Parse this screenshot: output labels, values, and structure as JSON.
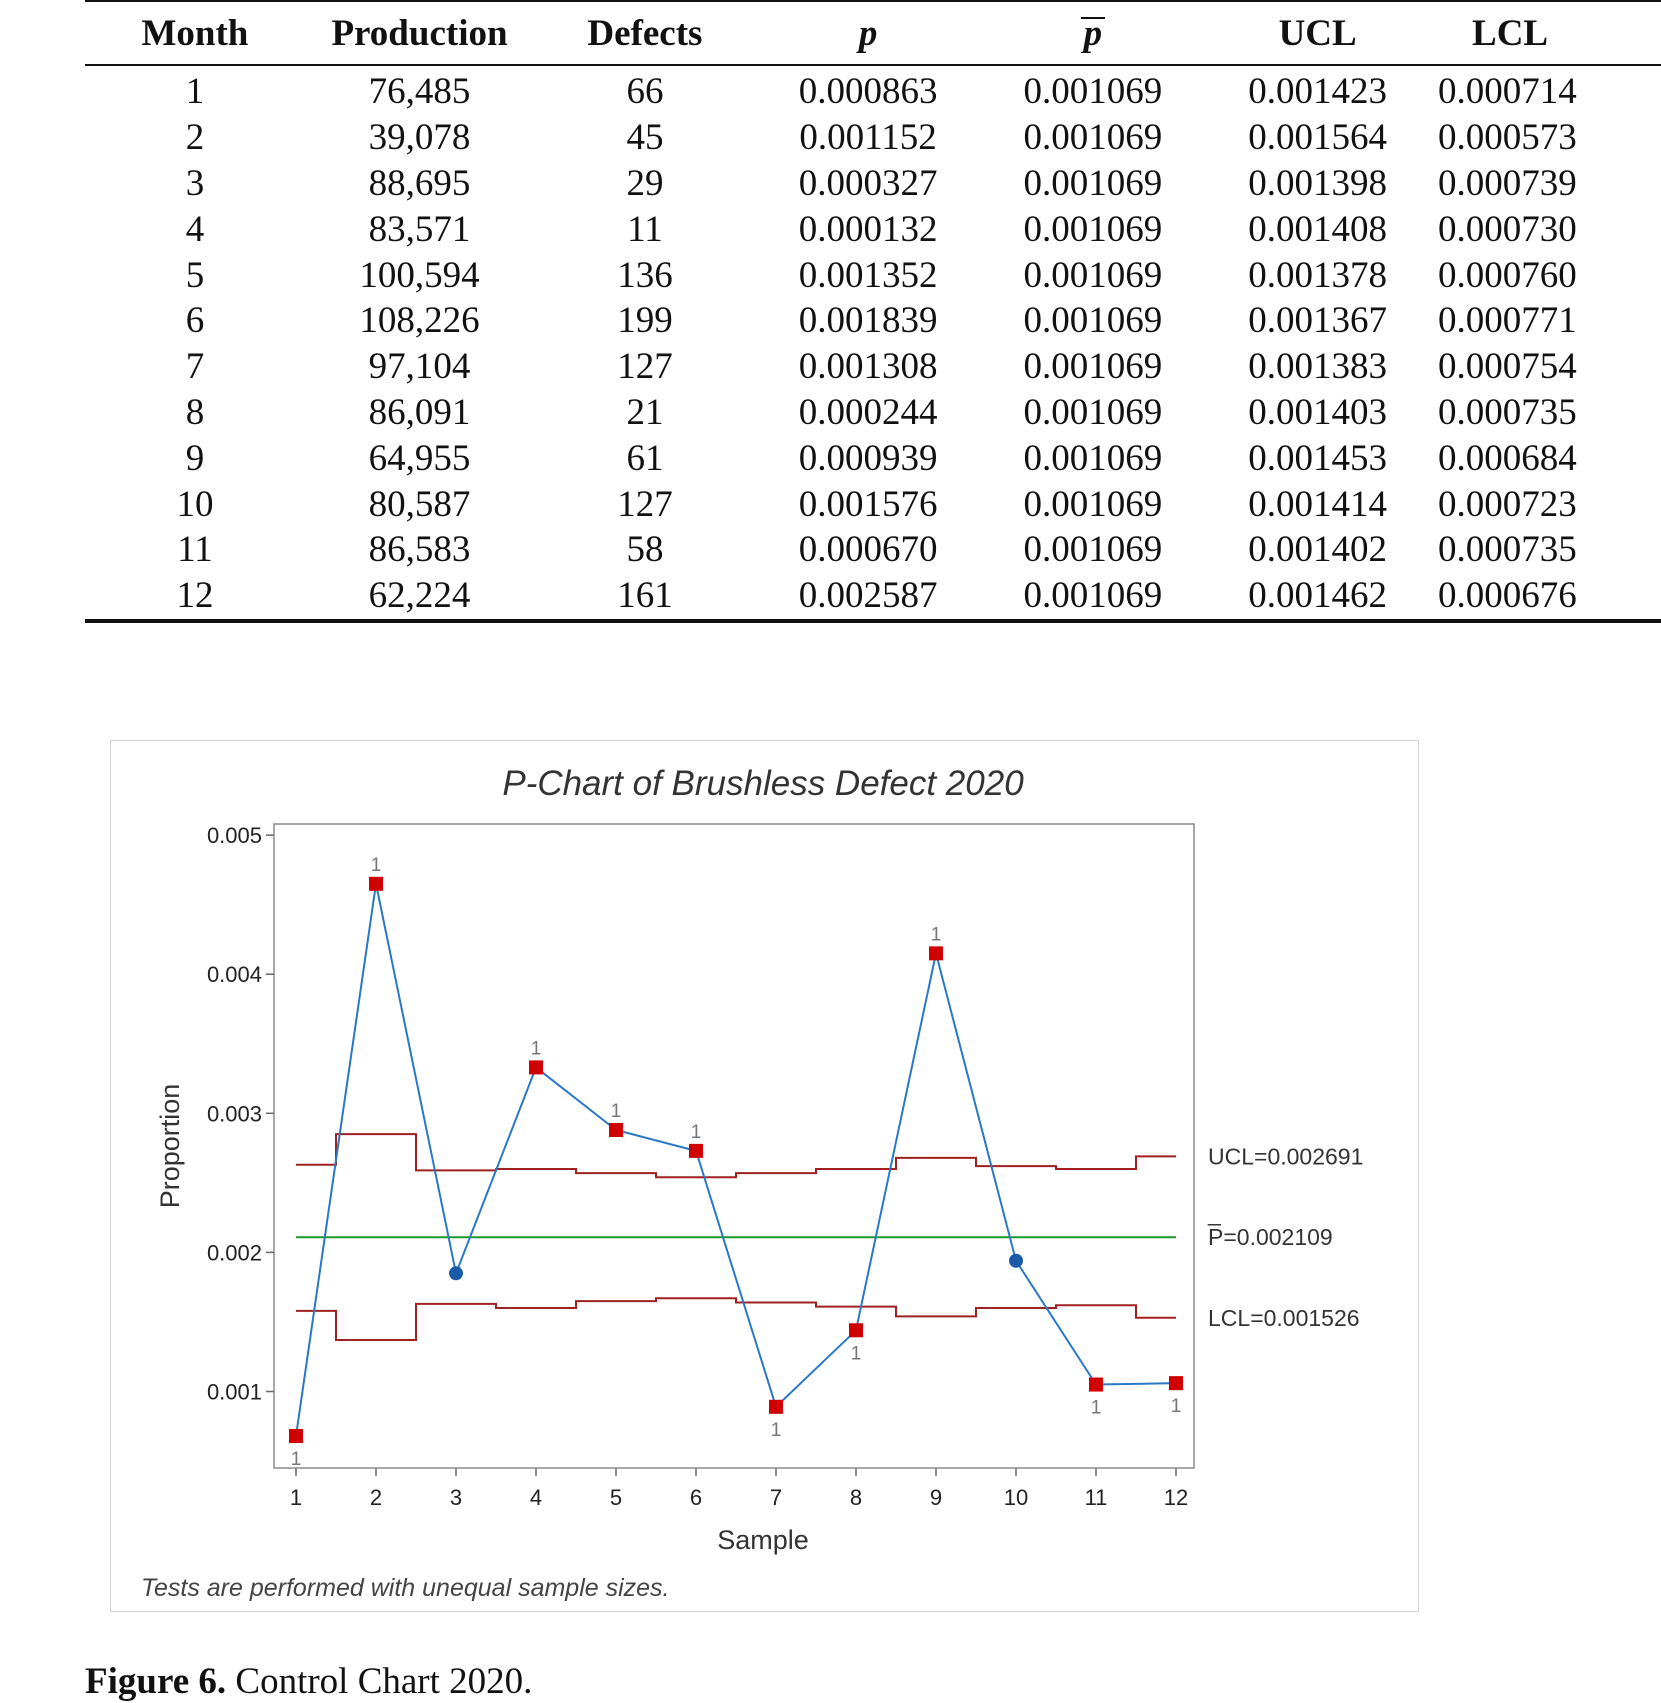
{
  "table": {
    "headers": {
      "month": "Month",
      "production": "Production",
      "defects": "Defects",
      "p": "p",
      "pbar": "p",
      "ucl": "UCL",
      "lcl": "LCL"
    },
    "rows": [
      {
        "month": "1",
        "production": "76,485",
        "defects": "66",
        "p": "0.000863",
        "pbar": "0.001069",
        "ucl": "0.001423",
        "lcl": "0.000714"
      },
      {
        "month": "2",
        "production": "39,078",
        "defects": "45",
        "p": "0.001152",
        "pbar": "0.001069",
        "ucl": "0.001564",
        "lcl": "0.000573"
      },
      {
        "month": "3",
        "production": "88,695",
        "defects": "29",
        "p": "0.000327",
        "pbar": "0.001069",
        "ucl": "0.001398",
        "lcl": "0.000739"
      },
      {
        "month": "4",
        "production": "83,571",
        "defects": "11",
        "p": "0.000132",
        "pbar": "0.001069",
        "ucl": "0.001408",
        "lcl": "0.000730"
      },
      {
        "month": "5",
        "production": "100,594",
        "defects": "136",
        "p": "0.001352",
        "pbar": "0.001069",
        "ucl": "0.001378",
        "lcl": "0.000760"
      },
      {
        "month": "6",
        "production": "108,226",
        "defects": "199",
        "p": "0.001839",
        "pbar": "0.001069",
        "ucl": "0.001367",
        "lcl": "0.000771"
      },
      {
        "month": "7",
        "production": "97,104",
        "defects": "127",
        "p": "0.001308",
        "pbar": "0.001069",
        "ucl": "0.001383",
        "lcl": "0.000754"
      },
      {
        "month": "8",
        "production": "86,091",
        "defects": "21",
        "p": "0.000244",
        "pbar": "0.001069",
        "ucl": "0.001403",
        "lcl": "0.000735"
      },
      {
        "month": "9",
        "production": "64,955",
        "defects": "61",
        "p": "0.000939",
        "pbar": "0.001069",
        "ucl": "0.001453",
        "lcl": "0.000684"
      },
      {
        "month": "10",
        "production": "80,587",
        "defects": "127",
        "p": "0.001576",
        "pbar": "0.001069",
        "ucl": "0.001414",
        "lcl": "0.000723"
      },
      {
        "month": "11",
        "production": "86,583",
        "defects": "58",
        "p": "0.000670",
        "pbar": "0.001069",
        "ucl": "0.001402",
        "lcl": "0.000735"
      },
      {
        "month": "12",
        "production": "62,224",
        "defects": "161",
        "p": "0.002587",
        "pbar": "0.001069",
        "ucl": "0.001462",
        "lcl": "0.000676"
      }
    ]
  },
  "chart_data": {
    "type": "line",
    "title": "P-Chart of Brushless Defect 2020",
    "xlabel": "Sample",
    "ylabel": "Proportion",
    "x": [
      1,
      2,
      3,
      4,
      5,
      6,
      7,
      8,
      9,
      10,
      11,
      12
    ],
    "ylim": [
      0.00045,
      0.00508
    ],
    "yticks": [
      0.001,
      0.002,
      0.003,
      0.004,
      0.005
    ],
    "ytick_labels": [
      "0.001",
      "0.002",
      "0.003",
      "0.004",
      "0.005"
    ],
    "xtick_labels": [
      "1",
      "2",
      "3",
      "4",
      "5",
      "6",
      "7",
      "8",
      "9",
      "10",
      "11",
      "12"
    ],
    "series": [
      {
        "name": "Proportion",
        "color": "#2a78c8",
        "values": [
          0.00068,
          0.00465,
          0.00185,
          0.00333,
          0.00288,
          0.00273,
          0.00089,
          0.00144,
          0.00415,
          0.00194,
          0.00105,
          0.00106
        ],
        "out_of_control": [
          true,
          true,
          false,
          true,
          true,
          true,
          true,
          true,
          true,
          false,
          true,
          true
        ],
        "flag_labels": [
          "1",
          "1",
          "",
          "1",
          "1",
          "1",
          "1",
          "1",
          "1",
          "",
          "1",
          "1"
        ],
        "flag_position": [
          "below",
          "above",
          "",
          "above",
          "above",
          "above",
          "below",
          "below",
          "above",
          "",
          "below",
          "below"
        ]
      }
    ],
    "ucl": {
      "color": "#a02020",
      "values": [
        0.00263,
        0.00285,
        0.00259,
        0.0026,
        0.00257,
        0.00254,
        0.00257,
        0.0026,
        0.00268,
        0.00262,
        0.0026,
        0.00269
      ],
      "label": "UCL=0.002691"
    },
    "center": {
      "color": "#1a9a2a",
      "value": 0.002109,
      "label_bar": "_",
      "label": "P=0.002109"
    },
    "lcl": {
      "color": "#a02020",
      "values": [
        0.00158,
        0.00137,
        0.00163,
        0.0016,
        0.00165,
        0.00167,
        0.00164,
        0.00161,
        0.00154,
        0.0016,
        0.00162,
        0.00153
      ],
      "label": "LCL=0.001526"
    },
    "marker_colors": {
      "out": "#d00000",
      "in": "#1a5aa8"
    },
    "footnote": "Tests are performed with unequal sample sizes."
  },
  "caption": {
    "label": "Figure 6.",
    "text": "Control Chart 2020."
  }
}
